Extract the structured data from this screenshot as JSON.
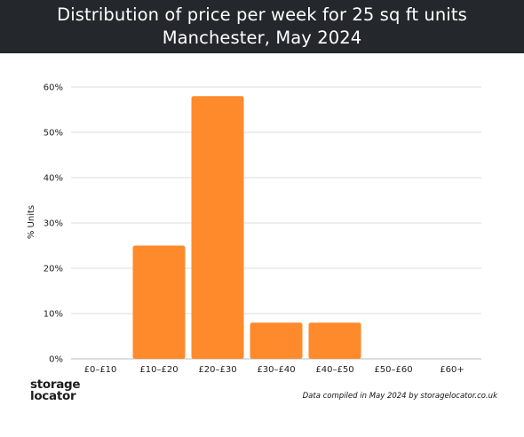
{
  "header": {
    "title_line1": "Distribution of price per week for 25 sq ft units",
    "title_line2": "Manchester, May 2024"
  },
  "footer": {
    "logo_line1": "storage",
    "logo_line2": "locator",
    "credit": "Data compiled in May 2024 by storagelocator.co.uk"
  },
  "colors": {
    "bar": "#ff8a2b",
    "header_bg": "#24272c",
    "grid": "#dddddd"
  },
  "chart_data": {
    "type": "bar",
    "title": "Distribution of price per week for 25 sq ft units",
    "subtitle": "Manchester, May 2024",
    "categories": [
      "£0–£10",
      "£10–£20",
      "£20–£30",
      "£30–£40",
      "£40–£50",
      "£50–£60",
      "£60+"
    ],
    "values": [
      0,
      25,
      58,
      8,
      8,
      0,
      0
    ],
    "ylabel": "% Units",
    "xlabel": "",
    "ylim": [
      0,
      60
    ],
    "yticks": [
      "0%",
      "10%",
      "20%",
      "30%",
      "40%",
      "50%",
      "60%"
    ],
    "grid": true,
    "legend": "none"
  }
}
